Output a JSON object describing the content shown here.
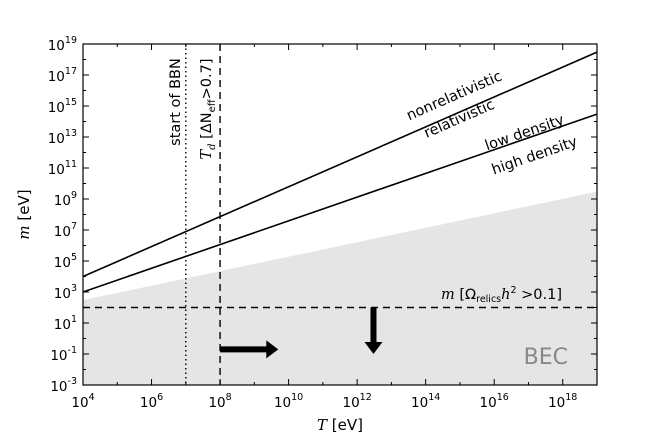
{
  "chart_data": {
    "type": "line",
    "xlabel_var": "T",
    "xlabel_unit": "[eV]",
    "ylabel_var": "m",
    "ylabel_unit": "[eV]",
    "x_scale": "log",
    "y_scale": "log",
    "xlim": [
      10000,
      1e+19
    ],
    "ylim": [
      0.001,
      1e+19
    ],
    "x_ticks": [
      {
        "base": "10",
        "exp": "4",
        "value": 10000.0
      },
      {
        "base": "10",
        "exp": "6",
        "value": 1000000.0
      },
      {
        "base": "10",
        "exp": "8",
        "value": 100000000.0
      },
      {
        "base": "10",
        "exp": "10",
        "value": 10000000000.0
      },
      {
        "base": "10",
        "exp": "12",
        "value": 1000000000000.0
      },
      {
        "base": "10",
        "exp": "14",
        "value": 100000000000000.0
      },
      {
        "base": "10",
        "exp": "16",
        "value": 1e+16
      },
      {
        "base": "10",
        "exp": "18",
        "value": 1e+18
      }
    ],
    "y_ticks": [
      {
        "base": "10",
        "exp": "-3",
        "value": 0.001
      },
      {
        "base": "10",
        "exp": "-1",
        "value": 0.1
      },
      {
        "base": "10",
        "exp": "1",
        "value": 10.0
      },
      {
        "base": "10",
        "exp": "3",
        "value": 1000.0
      },
      {
        "base": "10",
        "exp": "5",
        "value": 100000.0
      },
      {
        "base": "10",
        "exp": "7",
        "value": 10000000.0
      },
      {
        "base": "10",
        "exp": "9",
        "value": 1000000000.0
      },
      {
        "base": "10",
        "exp": "11",
        "value": 100000000000.0
      },
      {
        "base": "10",
        "exp": "13",
        "value": 10000000000000.0
      },
      {
        "base": "10",
        "exp": "15",
        "value": 1000000000000000.0
      },
      {
        "base": "10",
        "exp": "17",
        "value": 1e+17
      },
      {
        "base": "10",
        "exp": "19",
        "value": 1e+19
      }
    ],
    "series": [
      {
        "id": "upper_line",
        "style": "solid",
        "color": "#000000",
        "points": [
          [
            10000.0,
            10000.0
          ],
          [
            1e+19,
            3e+18
          ]
        ]
      },
      {
        "id": "lower_line",
        "style": "solid",
        "color": "#000000",
        "points": [
          [
            10000.0,
            1000.0
          ],
          [
            1e+19,
            300000000000000.0
          ]
        ]
      }
    ],
    "shaded_region": {
      "label": "BEC",
      "color": "#e5e5e5",
      "boundary": [
        [
          10000.0,
          300
        ],
        [
          1e+19,
          3000000000.0
        ]
      ]
    },
    "vertical_lines": [
      {
        "id": "bbn",
        "x": 10000000.0,
        "style": "dotted",
        "label": "start of BBN"
      },
      {
        "id": "td",
        "x": 100000000.0,
        "style": "dashed"
      }
    ],
    "horizontal_lines": [
      {
        "id": "relics",
        "y": 100,
        "style": "dashed"
      }
    ],
    "arrows": [
      {
        "id": "right_arrow",
        "from": [
          100000000.0,
          0.2
        ],
        "to": [
          5000000000.0,
          0.2
        ]
      },
      {
        "id": "down_arrow",
        "from": [
          3000000000000.0,
          100
        ],
        "to": [
          3000000000000.0,
          0.1
        ]
      }
    ],
    "annotations": {
      "nonrelativistic": "nonrelativistic",
      "relativistic": "relativistic",
      "low_density": "low density",
      "high_density": "high density",
      "bbn": "start of BBN",
      "td_var": "T",
      "td_sub": "d",
      "td_rest": "[ΔN",
      "td_rest_sub": "eff",
      "td_rest_end": ">0.7]",
      "relics_var": "m",
      "relics_open": "[Ω",
      "relics_sub": "relics",
      "relics_h": "h",
      "relics_h_exp": "2",
      "relics_end": ">0.1]",
      "bec": "BEC"
    }
  }
}
